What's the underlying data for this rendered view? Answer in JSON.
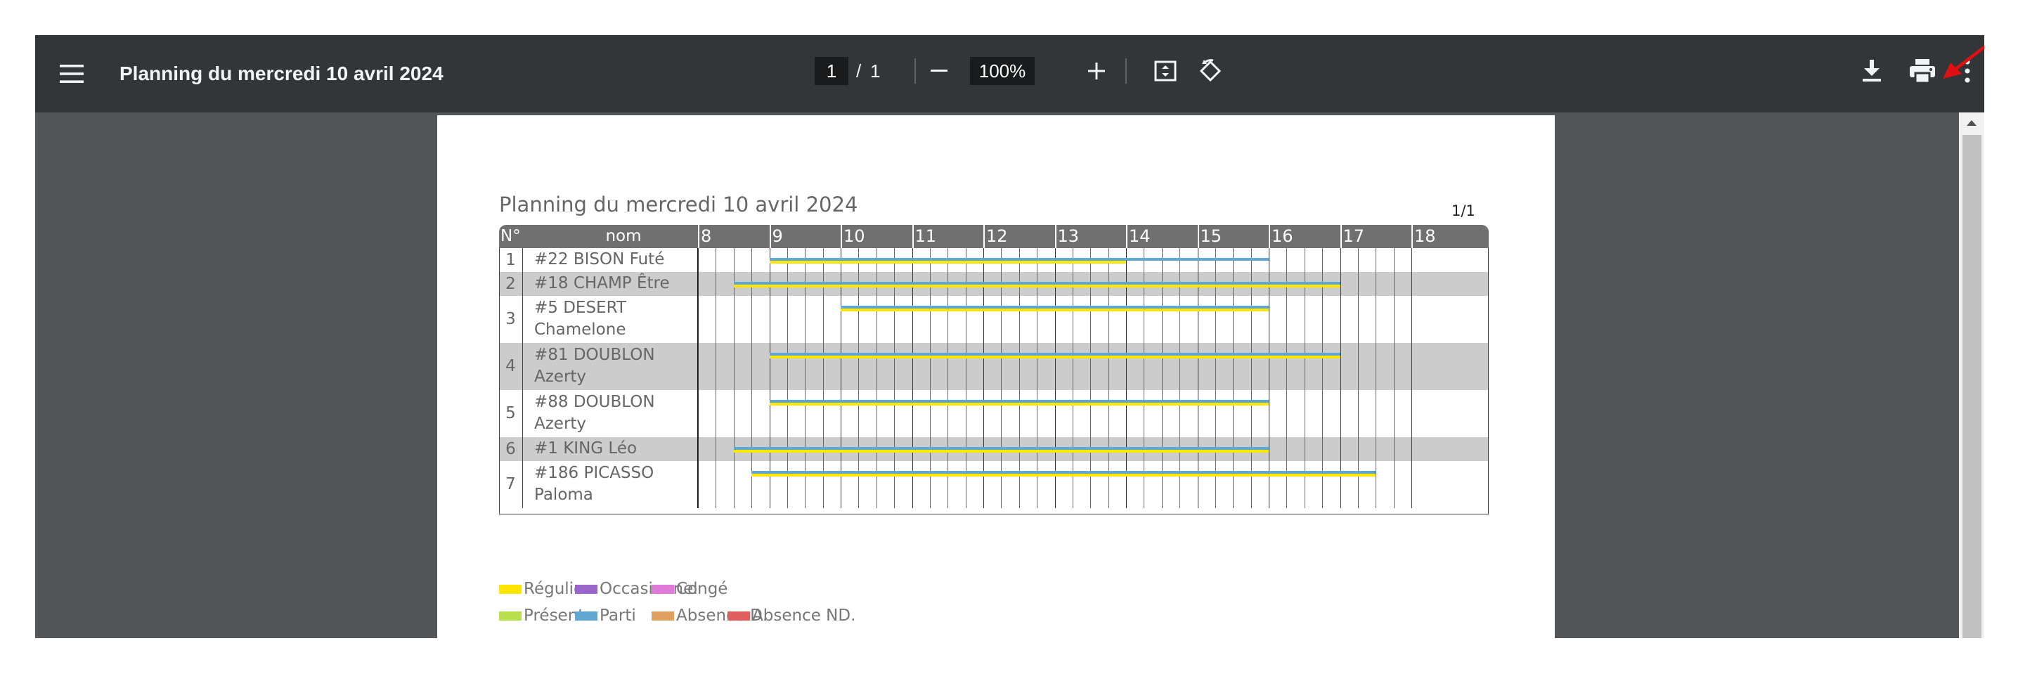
{
  "toolbar": {
    "title": "Planning du mercredi 10 avril 2024",
    "page_current": "1",
    "page_separator": "/",
    "page_total": "1",
    "zoom": "100%",
    "icons": [
      "menu-icon",
      "zoom-out-icon",
      "zoom-in-icon",
      "fit-page-icon",
      "rotate-icon",
      "download-icon",
      "print-icon",
      "more-options-icon"
    ]
  },
  "pdf": {
    "title": "Planning du mercredi 10 avril 2024",
    "page_label": "1/1",
    "header": {
      "num": "N°",
      "name": "nom",
      "hours": [
        "8",
        "9",
        "10",
        "11",
        "12",
        "13",
        "14",
        "15",
        "16",
        "17",
        "18"
      ]
    },
    "rows": [
      {
        "num": "1",
        "name_lines": [
          "#22 BISON Futé"
        ],
        "shaded": false,
        "segments": [
          {
            "from": 9.0,
            "to": 14.0,
            "color": "#ffe600"
          },
          {
            "from": 9.0,
            "to": 16.0,
            "color": "#5fa8d3"
          }
        ]
      },
      {
        "num": "2",
        "name_lines": [
          "#18 CHAMP Être"
        ],
        "shaded": true,
        "segments": [
          {
            "from": 8.5,
            "to": 17.0,
            "color": "#ffe600"
          },
          {
            "from": 8.5,
            "to": 17.0,
            "color": "#5fa8d3"
          }
        ]
      },
      {
        "num": "3",
        "name_lines": [
          "#5 DESERT",
          "Chamelone"
        ],
        "shaded": false,
        "segments": [
          {
            "from": 10.0,
            "to": 16.0,
            "color": "#ffe600"
          },
          {
            "from": 10.0,
            "to": 16.0,
            "color": "#5fa8d3"
          }
        ]
      },
      {
        "num": "4",
        "name_lines": [
          "#81 DOUBLON",
          "Azerty"
        ],
        "shaded": true,
        "segments": [
          {
            "from": 9.0,
            "to": 17.0,
            "color": "#ffe600"
          },
          {
            "from": 9.0,
            "to": 17.0,
            "color": "#5fa8d3"
          }
        ]
      },
      {
        "num": "5",
        "name_lines": [
          "#88 DOUBLON",
          "Azerty"
        ],
        "shaded": false,
        "segments": [
          {
            "from": 9.0,
            "to": 16.0,
            "color": "#ffe600"
          },
          {
            "from": 9.0,
            "to": 16.0,
            "color": "#5fa8d3"
          }
        ]
      },
      {
        "num": "6",
        "name_lines": [
          "#1 KING Léo"
        ],
        "shaded": true,
        "segments": [
          {
            "from": 8.5,
            "to": 16.0,
            "color": "#ffe600"
          },
          {
            "from": 8.5,
            "to": 16.0,
            "color": "#5fa8d3"
          }
        ]
      },
      {
        "num": "7",
        "name_lines": [
          "#186 PICASSO",
          "Paloma"
        ],
        "shaded": false,
        "segments": [
          {
            "from": 8.75,
            "to": 17.5,
            "color": "#ffe600"
          },
          {
            "from": 8.75,
            "to": 17.5,
            "color": "#5fa8d3"
          }
        ]
      }
    ],
    "legend": [
      {
        "label": "Régulier",
        "color": "#ffe600"
      },
      {
        "label": "Occasionnel",
        "color": "#9966cc"
      },
      {
        "label": "Congé",
        "color": "#e07ad8"
      },
      {
        "label": "Présent",
        "color": "#b8e04a"
      },
      {
        "label": "Parti",
        "color": "#5fa8d3"
      },
      {
        "label": "Absence D.",
        "color": "#e0a060"
      },
      {
        "label": "Absence ND.",
        "color": "#e06060"
      }
    ]
  },
  "colors": {
    "toolbar_bg": "#323639",
    "viewer_bg": "#525659",
    "header_bg": "#707070",
    "row_shade": "#cccccc"
  }
}
